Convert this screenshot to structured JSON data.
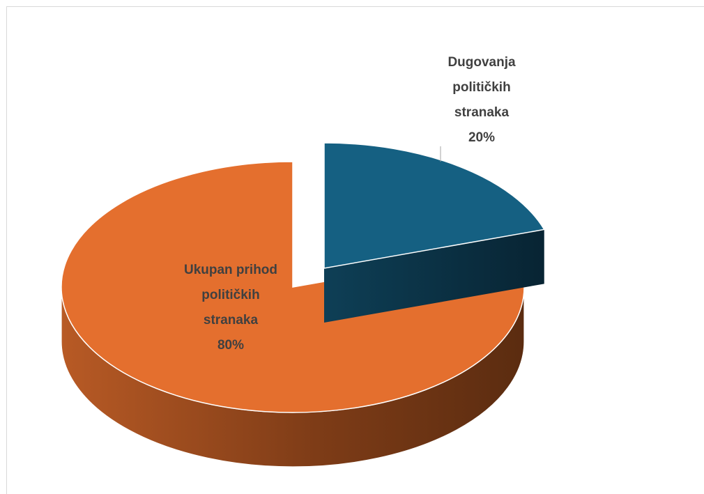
{
  "chart_data": {
    "type": "pie",
    "title": "",
    "slices": [
      {
        "name_lines": [
          "Ukupan prihod",
          "političkih",
          "stranaka"
        ],
        "percent_label": "80%",
        "value": 80,
        "color": "#E46F2E",
        "side_color_light": "#C7622A",
        "side_color_dark": "#5B2C10"
      },
      {
        "name_lines": [
          "Dugovanja",
          "političkih",
          "stranaka"
        ],
        "percent_label": "20%",
        "value": 20,
        "color": "#156082",
        "side_color_light": "#0E3F56",
        "side_color_dark": "#082433"
      }
    ],
    "style": "3d-exploded",
    "legend": "none"
  }
}
